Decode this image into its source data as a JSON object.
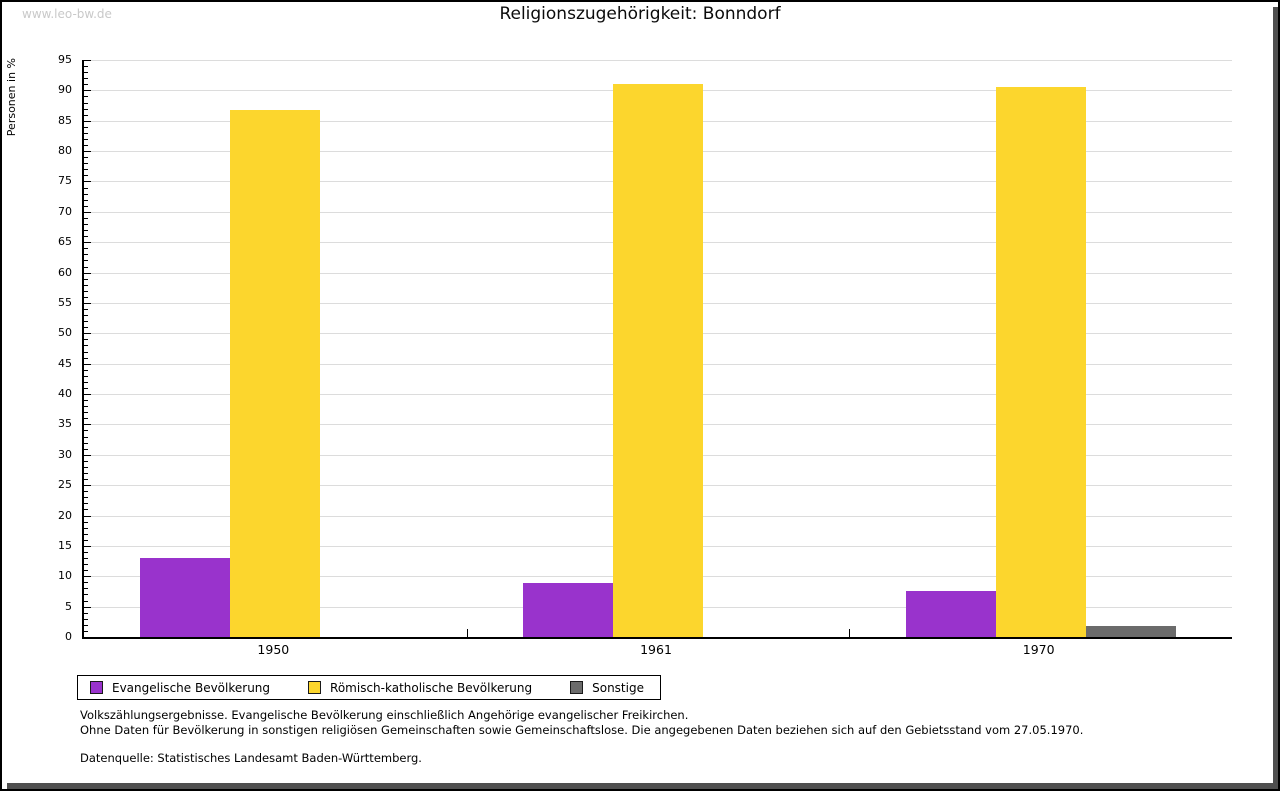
{
  "watermark": "www.leo-bw.de",
  "header": {
    "title": "Religionszugehörigkeit: Bonndorf"
  },
  "chart_data": {
    "type": "bar",
    "title": "Religionszugehörigkeit: Bonndorf",
    "xlabel": "",
    "ylabel": "Personen in %",
    "categories": [
      "1950",
      "1961",
      "1970"
    ],
    "series": [
      {
        "key": "evangelisch",
        "name": "Evangelische Bevölkerung",
        "color": "#9933CC",
        "values": [
          13.0,
          8.9,
          7.6
        ]
      },
      {
        "key": "katholisch",
        "name": "Römisch-katholische Bevölkerung",
        "color": "#FCD62D",
        "values": [
          86.8,
          91.0,
          90.6
        ]
      },
      {
        "key": "sonstige",
        "name": "Sonstige",
        "color": "#6B6B6B",
        "values": [
          0,
          0,
          1.8
        ]
      }
    ],
    "ylim": [
      0,
      95
    ],
    "ytick_step": 5,
    "minor_tick_step": 1,
    "grid": true,
    "legend_position": "bottom",
    "axis_color": "#000000",
    "grid_color": "#dcdcdc"
  },
  "footer": {
    "note1": "Volkszählungsergebnisse. Evangelische Bevölkerung einschließlich Angehörige evangelischer Freikirchen.",
    "note2": "Ohne Daten für Bevölkerung in sonstigen religiösen Gemeinschaften sowie Gemeinschaftslose. Die angegebenen Daten beziehen sich auf den Gebietsstand vom 27.05.1970.",
    "source": "Datenquelle: Statistisches Landesamt Baden-Württemberg."
  }
}
